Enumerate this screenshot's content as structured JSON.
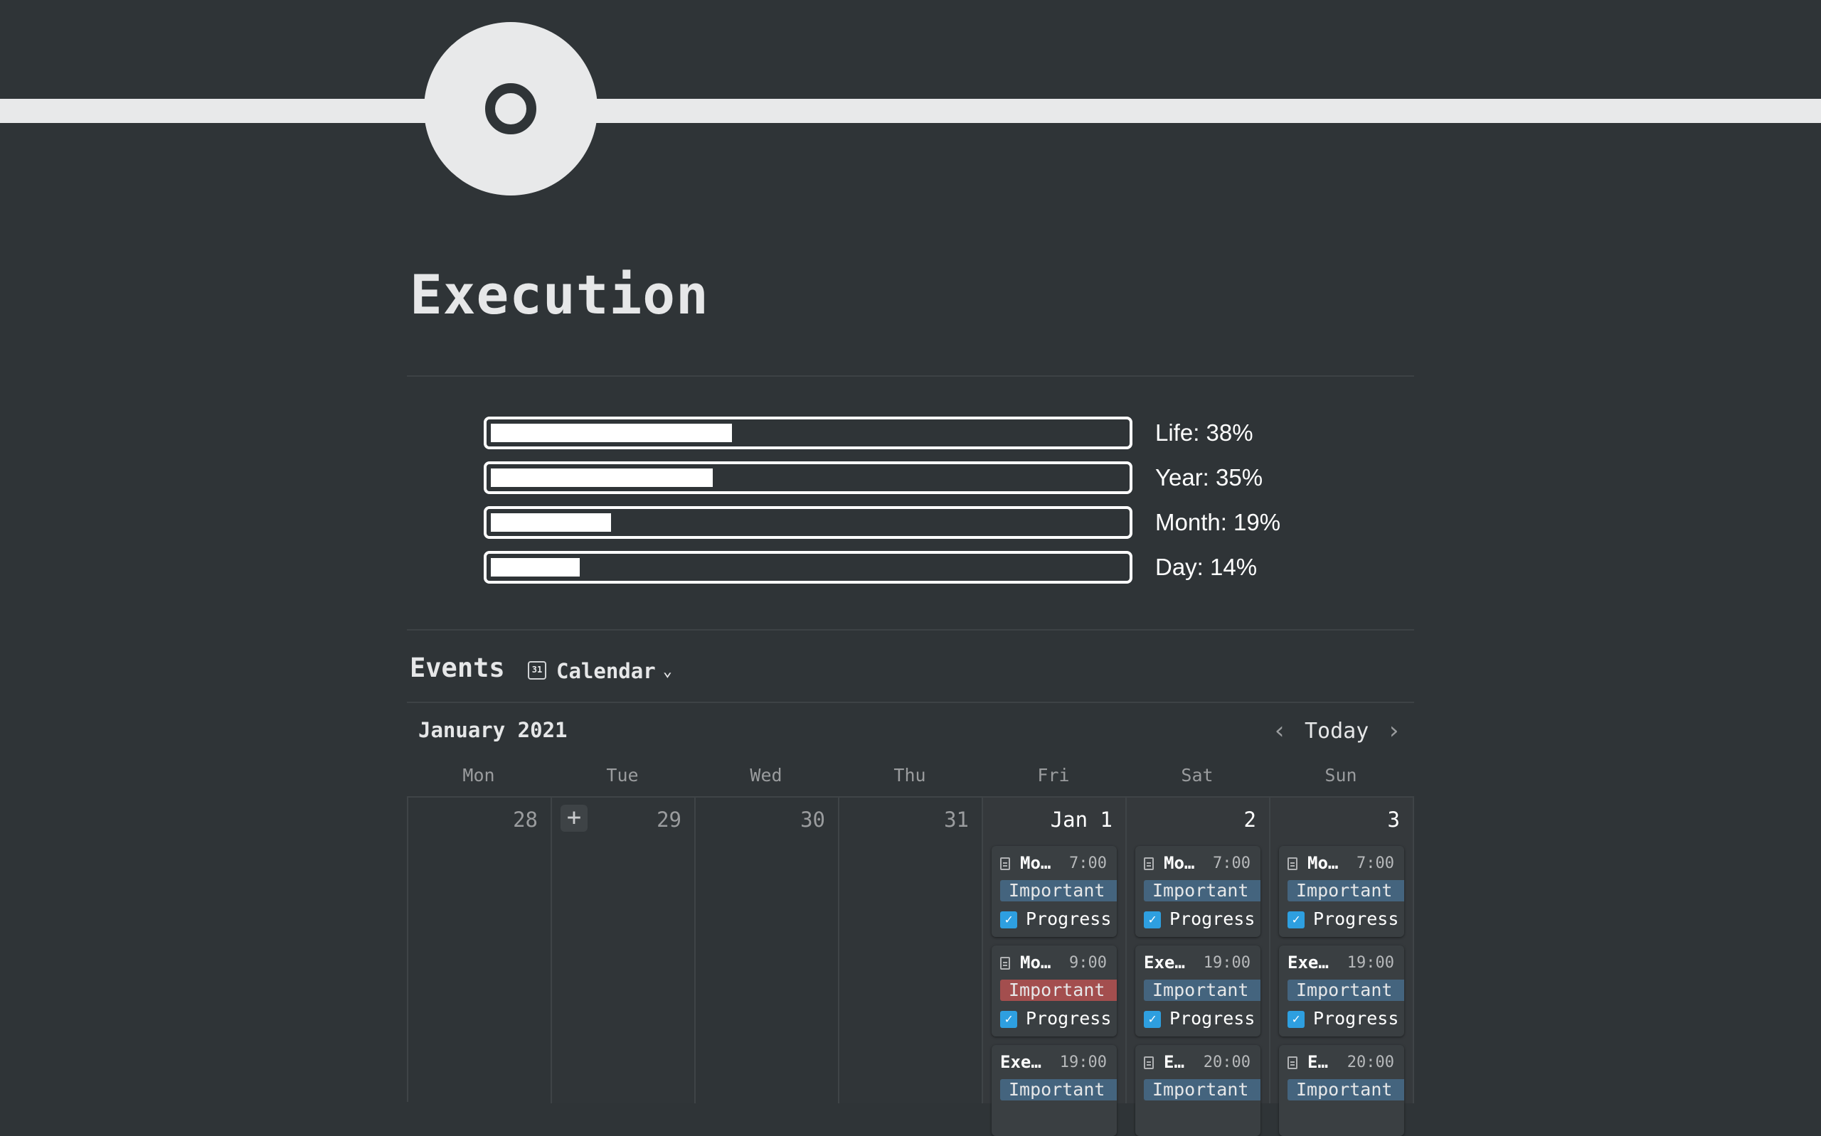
{
  "page": {
    "title": "Execution"
  },
  "progress": [
    {
      "label": "Life: 38%",
      "fraction": 0.38
    },
    {
      "label": "Year: 35%",
      "fraction": 0.35
    },
    {
      "label": "Month: 19%",
      "fraction": 0.19
    },
    {
      "label": "Day: 14%",
      "fraction": 0.14
    }
  ],
  "events": {
    "title": "Events",
    "view_label": "Calendar",
    "view_icon_text": "31",
    "month_label": "January 2021",
    "today_label": "Today",
    "weekdays": [
      "Mon",
      "Tue",
      "Wed",
      "Thu",
      "Fri",
      "Sat",
      "Sun"
    ],
    "days": [
      {
        "num": "28",
        "cards": []
      },
      {
        "num": "29",
        "cards": []
      },
      {
        "num": "30",
        "cards": []
      },
      {
        "num": "31",
        "cards": []
      },
      {
        "num": "Jan 1",
        "cards": [
          {
            "name": "Mo…",
            "time": "7:00",
            "tag": "Important",
            "tag_color": "#44647e",
            "check": "Progress",
            "icon": true
          },
          {
            "name": "Mo…",
            "time": "9:00",
            "tag": "Important",
            "tag_color": "#a34e4e",
            "check": "Progress",
            "icon": true
          },
          {
            "name": "Exe…",
            "time": "19:00",
            "tag": "Important",
            "tag_color": "#44647e",
            "check": "",
            "icon": false
          }
        ]
      },
      {
        "num": "2",
        "cards": [
          {
            "name": "Mo…",
            "time": "7:00",
            "tag": "Important",
            "tag_color": "#44647e",
            "check": "Progress",
            "icon": true
          },
          {
            "name": "Exe…",
            "time": "19:00",
            "tag": "Important",
            "tag_color": "#44647e",
            "check": "Progress",
            "icon": false
          },
          {
            "name": "E…",
            "time": "20:00",
            "tag": "Important",
            "tag_color": "#44647e",
            "check": "",
            "icon": true
          }
        ]
      },
      {
        "num": "3",
        "cards": [
          {
            "name": "Mo…",
            "time": "7:00",
            "tag": "Important",
            "tag_color": "#44647e",
            "check": "Progress",
            "icon": true
          },
          {
            "name": "Exe…",
            "time": "19:00",
            "tag": "Important",
            "tag_color": "#44647e",
            "check": "Progress",
            "icon": false
          },
          {
            "name": "E…",
            "time": "20:00",
            "tag": "Important",
            "tag_color": "#44647e",
            "check": "",
            "icon": true
          }
        ]
      }
    ]
  },
  "colors": {
    "background": "#2f3437",
    "tag_blue": "#44647e",
    "tag_red": "#a34e4e",
    "checkbox": "#2e9fe0"
  },
  "icons": {
    "page_icon": "target-ring-icon",
    "card_icon": "page-icon",
    "add": "plus-icon",
    "prev": "chevron-left-icon",
    "next": "chevron-right-icon",
    "view": "calendar-icon",
    "dropdown": "chevron-down-icon"
  }
}
